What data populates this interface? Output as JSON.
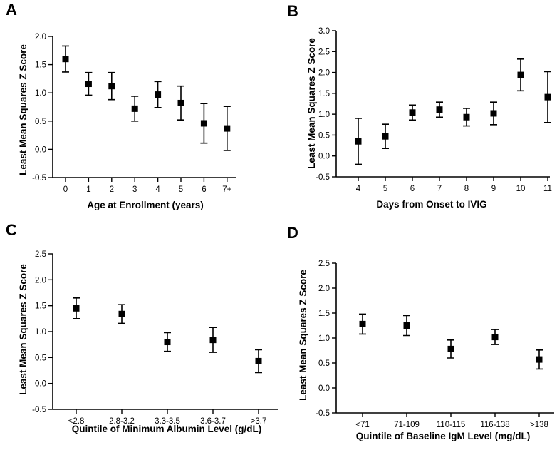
{
  "chart_data": [
    {
      "panel": "A",
      "type": "scatter",
      "xlabel": "Age at Enrollment (years)",
      "ylabel": "Least Mean Squares Z Score",
      "ylim": [
        -0.5,
        2.0
      ],
      "yticks": [
        "-0.5",
        "0.0",
        "0.5",
        "1.0",
        "1.5",
        "2.0"
      ],
      "categories": [
        "0",
        "1",
        "2",
        "3",
        "4",
        "5",
        "6",
        "7+"
      ],
      "values": [
        1.6,
        1.16,
        1.12,
        0.72,
        0.97,
        0.82,
        0.46,
        0.37
      ],
      "lower": [
        1.37,
        0.96,
        0.88,
        0.5,
        0.74,
        0.52,
        0.11,
        -0.02
      ],
      "upper": [
        1.83,
        1.36,
        1.36,
        0.94,
        1.2,
        1.12,
        0.81,
        0.76
      ]
    },
    {
      "panel": "B",
      "type": "scatter",
      "xlabel": "Days from Onset to IVIG",
      "ylabel": "Least Mean Squares Z Score",
      "ylim": [
        -0.5,
        3.0
      ],
      "yticks": [
        "-0.5",
        "0.0",
        "0.5",
        "1.0",
        "1.5",
        "2.0",
        "2.5",
        "3.0"
      ],
      "categories": [
        "4",
        "5",
        "6",
        "7",
        "8",
        "9",
        "10",
        "11"
      ],
      "values": [
        0.35,
        0.47,
        1.04,
        1.11,
        0.93,
        1.02,
        1.94,
        1.41
      ],
      "lower": [
        -0.2,
        0.18,
        0.86,
        0.93,
        0.72,
        0.75,
        1.56,
        0.8
      ],
      "upper": [
        0.9,
        0.76,
        1.22,
        1.29,
        1.14,
        1.29,
        2.32,
        2.02
      ]
    },
    {
      "panel": "C",
      "type": "scatter",
      "xlabel": "Quintile of Minimum Albumin Level (g/dL)",
      "ylabel": "Least Mean Squares Z Score",
      "ylim": [
        -0.5,
        2.5
      ],
      "yticks": [
        "-0.5",
        "0.0",
        "0.5",
        "1.0",
        "1.5",
        "2.0",
        "2.5"
      ],
      "categories": [
        "<2.8",
        "2.8-3.2",
        "3.3-3.5",
        "3.6-3.7",
        ">3.7"
      ],
      "values": [
        1.45,
        1.34,
        0.8,
        0.84,
        0.43
      ],
      "lower": [
        1.25,
        1.16,
        0.62,
        0.6,
        0.21
      ],
      "upper": [
        1.65,
        1.52,
        0.98,
        1.08,
        0.65
      ]
    },
    {
      "panel": "D",
      "type": "scatter",
      "xlabel": "Quintile of Baseline IgM Level (mg/dL)",
      "ylabel": "Least Mean Squares Z Score",
      "ylim": [
        -0.5,
        2.5
      ],
      "yticks": [
        "-0.5",
        "0.0",
        "0.5",
        "1.0",
        "1.5",
        "2.0",
        "2.5"
      ],
      "categories": [
        "<71",
        "71-109",
        "110-115",
        "116-138",
        ">138"
      ],
      "values": [
        1.28,
        1.25,
        0.78,
        1.02,
        0.57
      ],
      "lower": [
        1.08,
        1.05,
        0.6,
        0.87,
        0.38
      ],
      "upper": [
        1.48,
        1.45,
        0.96,
        1.17,
        0.76
      ]
    }
  ]
}
